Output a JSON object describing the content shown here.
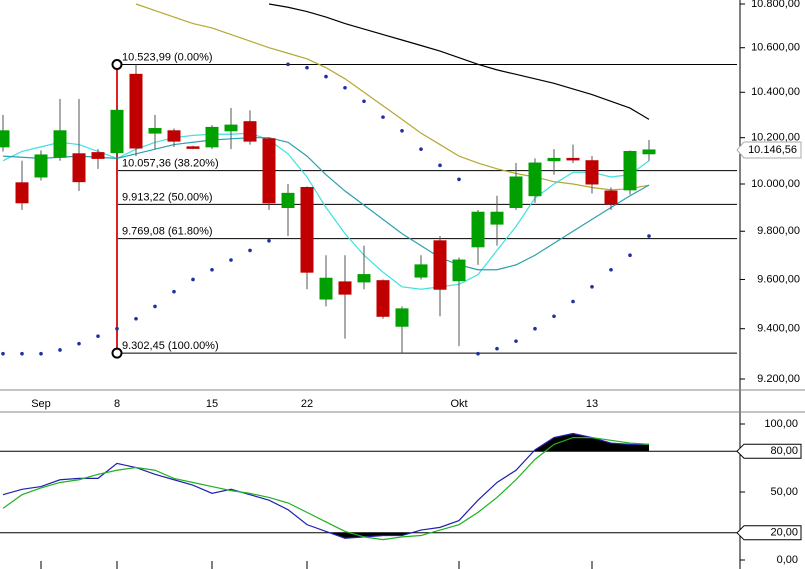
{
  "chart_data": [
    {
      "type": "candlestick",
      "categories": [
        null,
        null,
        "Sep",
        null,
        null,
        null,
        "8",
        null,
        null,
        null,
        null,
        "15",
        null,
        null,
        null,
        null,
        "22",
        null,
        null,
        null,
        null,
        null,
        null,
        null,
        "Okt",
        null,
        null,
        null,
        null,
        null,
        null,
        "13",
        null,
        null,
        null
      ],
      "open": [
        10160,
        10005,
        10030,
        10115,
        10130,
        10135,
        10135,
        10480,
        10220,
        10230,
        10160,
        10160,
        10230,
        10270,
        10195,
        9900,
        9985,
        9520,
        9590,
        9590,
        9595,
        9410,
        9610,
        9760,
        9595,
        9735,
        9830,
        9900,
        9950,
        10100,
        10110,
        10100,
        9970,
        9975,
        10130
      ],
      "high": [
        10300,
        10100,
        10145,
        10370,
        10370,
        10150,
        10330,
        10523.99,
        10300,
        10240,
        10165,
        10255,
        10330,
        10320,
        10200,
        10000,
        9990,
        9700,
        9700,
        9740,
        9600,
        9490,
        9700,
        9780,
        9690,
        9890,
        9950,
        10090,
        10110,
        10150,
        10170,
        10120,
        9985,
        10145,
        10190
      ],
      "low": [
        10140,
        9890,
        10015,
        10100,
        9970,
        10065,
        10100,
        10120,
        10150,
        10160,
        10150,
        10150,
        10150,
        10170,
        9890,
        9780,
        9560,
        9490,
        9360,
        9560,
        9440,
        9302.45,
        9600,
        9450,
        9330,
        9660,
        9740,
        9890,
        9920,
        10040,
        10090,
        9960,
        9890,
        9955,
        10100
      ],
      "close": [
        10230,
        9920,
        10125,
        10230,
        10010,
        10110,
        10320,
        10155,
        10240,
        10185,
        10155,
        10245,
        10255,
        10185,
        9920,
        9960,
        9630,
        9605,
        9540,
        9620,
        9450,
        9480,
        9660,
        9560,
        9680,
        9880,
        9880,
        10030,
        10090,
        10110,
        10105,
        10000,
        9915,
        10140,
        10146.56
      ],
      "up_color": "#00a000",
      "down_color": "#c00000",
      "overlays": [
        {
          "color": "#000000",
          "values": [
            null,
            null,
            null,
            null,
            null,
            null,
            null,
            null,
            null,
            null,
            null,
            null,
            null,
            null,
            10800,
            10785,
            10765,
            10740,
            10710,
            10685,
            10660,
            10635,
            10610,
            10585,
            10555,
            10525,
            10500,
            10480,
            10460,
            10440,
            10415,
            10390,
            10360,
            10330,
            10280
          ]
        },
        {
          "color": "#b5a832",
          "values": [
            null,
            null,
            null,
            null,
            null,
            null,
            null,
            10800,
            10770,
            10740,
            10710,
            10690,
            10660,
            10630,
            10600,
            10575,
            10550,
            10510,
            10460,
            10400,
            10340,
            10280,
            10220,
            10170,
            10120,
            10090,
            10065,
            10045,
            10030,
            10010,
            10000,
            9985,
            9975,
            9980,
            9995
          ]
        },
        {
          "color": "#3fe0e0",
          "values": [
            10100,
            10140,
            10160,
            10180,
            10170,
            10140,
            10110,
            10150,
            10180,
            10200,
            10210,
            10215,
            10215,
            10220,
            10190,
            10130,
            10030,
            9900,
            9790,
            9700,
            9630,
            9570,
            9560,
            9570,
            9580,
            9620,
            9720,
            9820,
            9940,
            10000,
            10050,
            10050,
            10030,
            10040,
            10100
          ]
        },
        {
          "color": "#2aa0b0",
          "values": [
            10120,
            10115,
            10110,
            10115,
            10120,
            10115,
            10110,
            10130,
            10150,
            10170,
            10180,
            10190,
            10195,
            10200,
            10200,
            10180,
            10120,
            10040,
            9970,
            9910,
            9850,
            9790,
            9740,
            9690,
            9660,
            9640,
            9640,
            9660,
            9700,
            9750,
            9800,
            9850,
            9900,
            9950,
            9995
          ]
        }
      ],
      "sar": {
        "color": "#1f2fa0",
        "values": [
          9300,
          9300,
          9300,
          9315,
          9340,
          9370,
          9400,
          9440,
          9490,
          9550,
          9600,
          9640,
          9680,
          9720,
          9760,
          10525,
          10510,
          10470,
          10420,
          10360,
          10290,
          10230,
          10150,
          10080,
          10020,
          9300,
          9320,
          9350,
          9400,
          9450,
          9510,
          9570,
          9640,
          9700,
          9780
        ]
      },
      "fibonacci": {
        "line_color": "#000000",
        "anchor_color": "#e02020",
        "levels": [
          {
            "value": 10523.99,
            "label": "10.523,99 (0.00%)"
          },
          {
            "value": 10057.36,
            "label": "10.057,36 (38.20%)"
          },
          {
            "value": 9913.22,
            "label": "9.913,22 (50.00%)"
          },
          {
            "value": 9769.08,
            "label": "9.769,08 (61.80%)"
          },
          {
            "value": 9302.45,
            "label": "9.302,45 (100.00%)"
          }
        ]
      },
      "last_price": {
        "value": 10146.56,
        "label": "10.146,56"
      },
      "log_scale": true,
      "ylim": [
        9200,
        10800
      ],
      "yticks": [
        {
          "value": 10800,
          "label": "10.800,00"
        },
        {
          "value": 10600,
          "label": "10.600,00"
        },
        {
          "value": 10400,
          "label": "10.400,00"
        },
        {
          "value": 10200,
          "label": "10.200,00"
        },
        {
          "value": 10000,
          "label": "10.000,00"
        },
        {
          "value": 9800,
          "label": "9.800,00"
        },
        {
          "value": 9600,
          "label": "9.600,00"
        },
        {
          "value": 9400,
          "label": "9.400,00"
        },
        {
          "value": 9200,
          "label": "9.200,00"
        }
      ]
    },
    {
      "type": "line",
      "series": [
        {
          "color": "#2020b0",
          "values": [
            48,
            52,
            54,
            59,
            60,
            60,
            71,
            68,
            63,
            59,
            55,
            49,
            52,
            48,
            44,
            37,
            26,
            21,
            16,
            17,
            18,
            18,
            22,
            24,
            29,
            44,
            57,
            66,
            81,
            90,
            93,
            90,
            86,
            85,
            85
          ]
        },
        {
          "color": "#20b020",
          "values": [
            38,
            48,
            53,
            57,
            59,
            63,
            66,
            68,
            66,
            60,
            57,
            54,
            51,
            49,
            46,
            42,
            35,
            28,
            21,
            17,
            15,
            17,
            18,
            22,
            26,
            35,
            46,
            59,
            74,
            85,
            90,
            90,
            88,
            86,
            85
          ]
        }
      ],
      "fill_color": "#000000",
      "level_lines": [
        80,
        20
      ],
      "ylim": [
        0,
        100
      ],
      "yticks": [
        {
          "value": 100,
          "label": "100,00"
        },
        {
          "value": 80,
          "label": "80,00"
        },
        {
          "value": 50,
          "label": "50,00"
        },
        {
          "value": 20,
          "label": "20,00"
        },
        {
          "value": 0,
          "label": "0,00"
        }
      ]
    }
  ]
}
